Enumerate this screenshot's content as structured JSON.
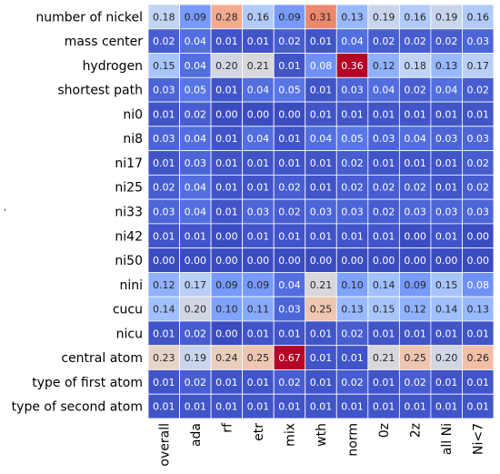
{
  "chart_data": {
    "type": "heatmap",
    "title": "",
    "ylabel": "'",
    "columns": [
      "overall",
      "ada",
      "rf",
      "etr",
      "mix",
      "wth",
      "norm",
      "0z",
      "2z",
      "all Ni",
      "Ni<7"
    ],
    "rows": [
      "number of nickel",
      "mass center",
      "hydrogen",
      "shortest path",
      "ni0",
      "ni8",
      "ni17",
      "ni25",
      "ni33",
      "ni42",
      "ni50",
      "nini",
      "cucu",
      "nicu",
      "central atom",
      "type of first atom",
      "type of second atom"
    ],
    "values": [
      [
        0.18,
        0.09,
        0.28,
        0.16,
        0.09,
        0.31,
        0.13,
        0.19,
        0.16,
        0.19,
        0.16
      ],
      [
        0.02,
        0.04,
        0.01,
        0.01,
        0.02,
        0.01,
        0.04,
        0.02,
        0.02,
        0.02,
        0.03
      ],
      [
        0.15,
        0.04,
        0.2,
        0.21,
        0.01,
        0.08,
        0.36,
        0.12,
        0.18,
        0.13,
        0.17
      ],
      [
        0.03,
        0.05,
        0.01,
        0.04,
        0.05,
        0.01,
        0.03,
        0.04,
        0.02,
        0.04,
        0.02
      ],
      [
        0.01,
        0.02,
        0.0,
        0.0,
        0.0,
        0.01,
        0.01,
        0.01,
        0.01,
        0.01,
        0.01
      ],
      [
        0.03,
        0.04,
        0.01,
        0.04,
        0.01,
        0.04,
        0.05,
        0.03,
        0.04,
        0.03,
        0.03
      ],
      [
        0.01,
        0.03,
        0.01,
        0.01,
        0.01,
        0.01,
        0.02,
        0.01,
        0.01,
        0.01,
        0.02
      ],
      [
        0.02,
        0.04,
        0.01,
        0.01,
        0.02,
        0.01,
        0.02,
        0.02,
        0.02,
        0.01,
        0.02
      ],
      [
        0.03,
        0.04,
        0.01,
        0.03,
        0.02,
        0.03,
        0.03,
        0.02,
        0.03,
        0.03,
        0.03
      ],
      [
        0.01,
        0.01,
        0.0,
        0.01,
        0.01,
        0.01,
        0.01,
        0.01,
        0.0,
        0.01,
        0.0
      ],
      [
        0.0,
        0.0,
        0.0,
        0.0,
        0.0,
        0.0,
        0.0,
        0.0,
        0.0,
        0.0,
        0.0
      ],
      [
        0.12,
        0.17,
        0.09,
        0.09,
        0.04,
        0.21,
        0.1,
        0.14,
        0.09,
        0.15,
        0.08
      ],
      [
        0.14,
        0.2,
        0.1,
        0.11,
        0.03,
        0.25,
        0.13,
        0.15,
        0.12,
        0.14,
        0.13
      ],
      [
        0.01,
        0.02,
        0.0,
        0.01,
        0.01,
        0.01,
        0.02,
        0.01,
        0.01,
        0.01,
        0.01
      ],
      [
        0.23,
        0.19,
        0.24,
        0.25,
        0.67,
        0.01,
        0.01,
        0.21,
        0.25,
        0.2,
        0.26
      ],
      [
        0.01,
        0.02,
        0.01,
        0.01,
        0.02,
        0.01,
        0.02,
        0.01,
        0.02,
        0.01,
        0.01
      ],
      [
        0.01,
        0.01,
        0.01,
        0.01,
        0.01,
        0.01,
        0.01,
        0.01,
        0.01,
        0.01,
        0.01
      ]
    ],
    "colormap": "coolwarm",
    "color_range": [
      0.0,
      0.36
    ],
    "decimals": 2,
    "grid": true,
    "legend": "none"
  }
}
